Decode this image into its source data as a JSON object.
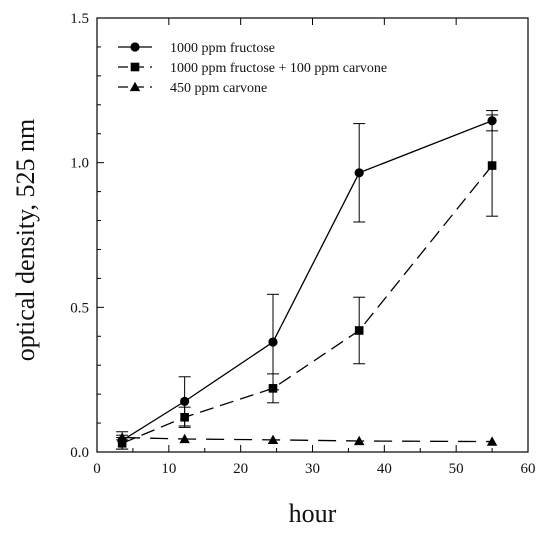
{
  "chart_data": {
    "type": "line",
    "title": "",
    "xlabel": "hour",
    "ylabel": "optical density, 525 nm",
    "xlim": [
      0,
      60
    ],
    "ylim": [
      0,
      1.5
    ],
    "x_ticks": [
      0,
      10,
      20,
      30,
      40,
      50,
      60
    ],
    "y_ticks": [
      0.0,
      0.5,
      1.0,
      1.5
    ],
    "x_tick_labels": [
      "0",
      "10",
      "20",
      "30",
      "40",
      "50",
      "60"
    ],
    "y_tick_labels": [
      "0.0",
      "0.5",
      "1.0",
      "1.5"
    ],
    "grid": false,
    "legend_position": "top-left",
    "series": [
      {
        "name": "1000 ppm fructose",
        "marker": "circle",
        "line_style": "solid",
        "color": "#000000",
        "points": [
          {
            "x": 3.5,
            "y": 0.04,
            "err": 0.03
          },
          {
            "x": 12.2,
            "y": 0.175,
            "err": 0.085
          },
          {
            "x": 24.5,
            "y": 0.38,
            "err": 0.165
          },
          {
            "x": 36.5,
            "y": 0.965,
            "err": 0.17
          },
          {
            "x": 55.0,
            "y": 1.145,
            "err": 0.035
          }
        ]
      },
      {
        "name": "1000 ppm fructose + 100 ppm carvone",
        "marker": "square",
        "line_style": "dashed",
        "color": "#000000",
        "points": [
          {
            "x": 3.5,
            "y": 0.03,
            "err": 0.02
          },
          {
            "x": 12.2,
            "y": 0.12,
            "err": 0.035
          },
          {
            "x": 24.5,
            "y": 0.22,
            "err": 0.05
          },
          {
            "x": 36.5,
            "y": 0.42,
            "err": 0.115
          },
          {
            "x": 55.0,
            "y": 0.99,
            "err": 0.175
          }
        ]
      },
      {
        "name": "450 ppm carvone",
        "marker": "triangle",
        "line_style": "long-dash",
        "color": "#000000",
        "points": [
          {
            "x": 3.5,
            "y": 0.05,
            "err": 0.008
          },
          {
            "x": 12.2,
            "y": 0.045,
            "err": 0.0
          },
          {
            "x": 24.5,
            "y": 0.042,
            "err": 0.0
          },
          {
            "x": 36.5,
            "y": 0.038,
            "err": 0.0
          },
          {
            "x": 55.0,
            "y": 0.036,
            "err": 0.0
          }
        ]
      }
    ]
  }
}
